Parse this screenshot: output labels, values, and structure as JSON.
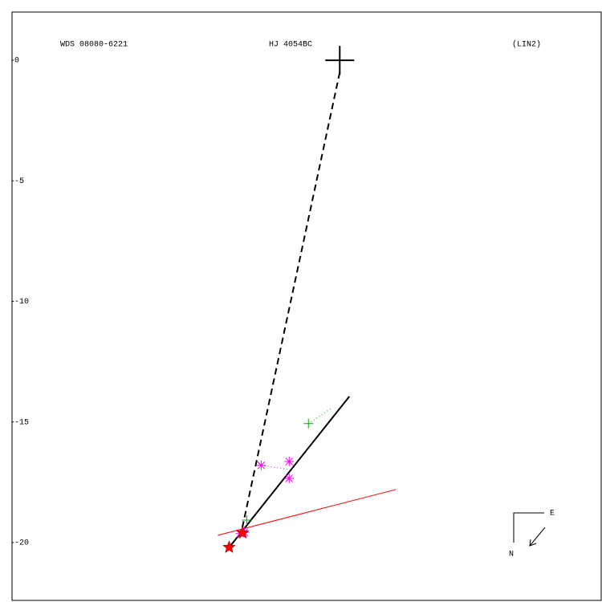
{
  "chart_data": {
    "type": "orbit",
    "labels": [
      "WDS 08080-6221",
      "HJ 4054BC",
      "(LIN2)"
    ],
    "xlim": [
      -13.6,
      10.85
    ],
    "ylim": [
      -22.4,
      2.0
    ],
    "yticks": [
      0,
      -5,
      -10,
      -15,
      -20
    ],
    "primary": {
      "x": 0,
      "y": 0,
      "color": "#000000"
    },
    "segments": [
      {
        "style": "dashed",
        "color": "#000000",
        "x": [
          0,
          -4.09
        ],
        "y": [
          -0.5,
          -19.6
        ]
      },
      {
        "style": "solid",
        "color": "#000000",
        "x": [
          -4.53,
          0.4
        ],
        "y": [
          -20.13,
          -13.94
        ]
      },
      {
        "style": "solid",
        "color": "#ff0000",
        "x": [
          -5.06,
          2.33
        ],
        "y": [
          -19.7,
          -17.8
        ]
      },
      {
        "style": "dotted",
        "color": "#00aa00",
        "x": [
          -1.3,
          -0.3
        ],
        "y": [
          -15.07,
          -14.4
        ]
      },
      {
        "style": "dotted",
        "color": "#ff00ff",
        "x": [
          -3.26,
          -2.1
        ],
        "y": [
          -16.8,
          -16.97
        ]
      }
    ],
    "points": [
      {
        "symbol": "plus",
        "color": "#00aa00",
        "x": [
          -1.3,
          -3.86
        ],
        "y": [
          -15.07,
          -19.07
        ]
      },
      {
        "symbol": "asterisk",
        "color": "#ff00ff",
        "x": [
          -3.26,
          -2.1,
          -2.1,
          -4.13,
          -3.96
        ],
        "y": [
          -16.8,
          -16.64,
          -17.34,
          -19.63,
          -19.58
        ]
      },
      {
        "symbol": "star",
        "color": "#ff0000",
        "x": [
          -4.59,
          -4.03
        ],
        "y": [
          -20.2,
          -19.6
        ]
      }
    ],
    "compass": {
      "east": "E",
      "north": "N"
    }
  }
}
